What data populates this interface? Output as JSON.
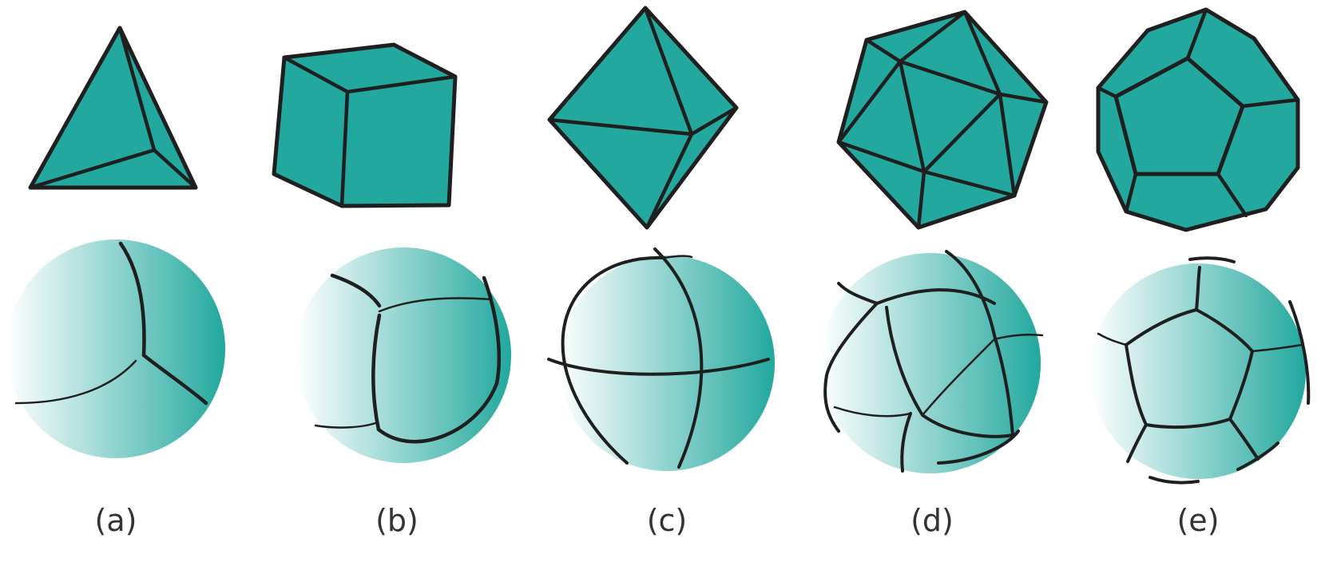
{
  "figure": {
    "panels": [
      {
        "id": "a",
        "label": "(a)"
      },
      {
        "id": "b",
        "label": "(b)"
      },
      {
        "id": "c",
        "label": "(c)"
      },
      {
        "id": "d",
        "label": "(d)"
      },
      {
        "id": "e",
        "label": "(e)"
      }
    ]
  },
  "colors": {
    "face": "#22a89e",
    "edge": "#1f1f1f",
    "sphere_light": "#ffffff",
    "sphere_dark": "#22a89e",
    "label": "#333333"
  }
}
